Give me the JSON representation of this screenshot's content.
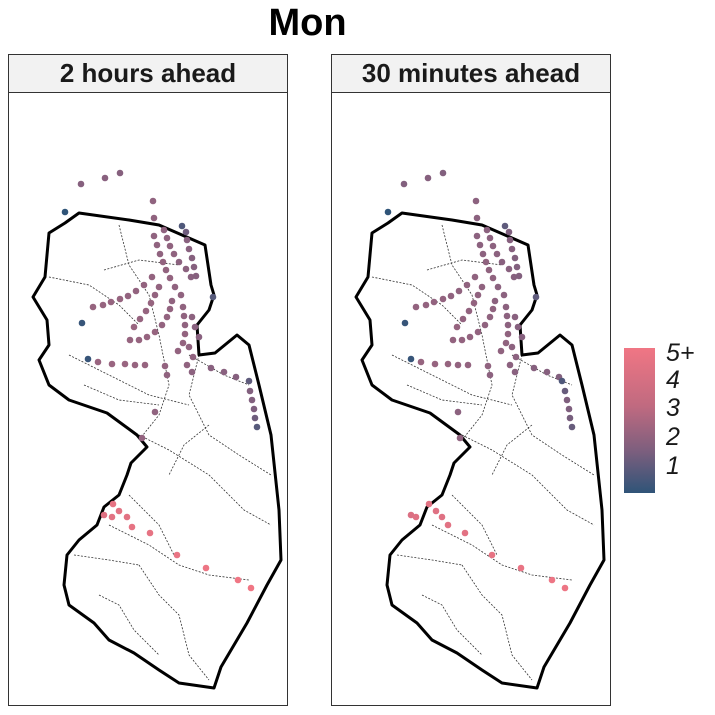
{
  "title": "Mon",
  "panels": [
    {
      "label": "2 hours ahead"
    },
    {
      "label": "30 minutes ahead"
    }
  ],
  "legend": {
    "labels": [
      "5+",
      "4",
      "3",
      "2",
      "1"
    ],
    "colors": {
      "high": "#f07684",
      "mid": "#8d6280",
      "low": "#2f5478"
    }
  },
  "chart_data": {
    "type": "scatter",
    "value_scale": {
      "min": 1,
      "max": 5,
      "top_label": "5+"
    },
    "series": [
      {
        "panel": "2 hours ahead",
        "points": [
          {
            "x": 72,
            "y": 129,
            "value": 2.2
          },
          {
            "x": 96,
            "y": 123,
            "value": 2.3
          },
          {
            "x": 111,
            "y": 118,
            "value": 2.2
          },
          {
            "x": 56,
            "y": 157,
            "value": 1.0
          },
          {
            "x": 144,
            "y": 146,
            "value": 2.5
          },
          {
            "x": 145,
            "y": 163,
            "value": 2.5
          },
          {
            "x": 173,
            "y": 171,
            "value": 1.4
          },
          {
            "x": 177,
            "y": 177,
            "value": 1.8
          },
          {
            "x": 155,
            "y": 175,
            "value": 2.5
          },
          {
            "x": 158,
            "y": 183,
            "value": 2.5
          },
          {
            "x": 161,
            "y": 191,
            "value": 2.5
          },
          {
            "x": 165,
            "y": 199,
            "value": 2.5
          },
          {
            "x": 170,
            "y": 207,
            "value": 2.4
          },
          {
            "x": 177,
            "y": 214,
            "value": 2.4
          },
          {
            "x": 182,
            "y": 222,
            "value": 2.3
          },
          {
            "x": 178,
            "y": 185,
            "value": 2.3
          },
          {
            "x": 180,
            "y": 194,
            "value": 2.3
          },
          {
            "x": 183,
            "y": 203,
            "value": 2.2
          },
          {
            "x": 185,
            "y": 212,
            "value": 2.2
          },
          {
            "x": 187,
            "y": 221,
            "value": 2.2
          },
          {
            "x": 145,
            "y": 181,
            "value": 2.5
          },
          {
            "x": 148,
            "y": 190,
            "value": 2.5
          },
          {
            "x": 151,
            "y": 199,
            "value": 2.5
          },
          {
            "x": 154,
            "y": 207,
            "value": 2.6
          },
          {
            "x": 157,
            "y": 215,
            "value": 2.6
          },
          {
            "x": 161,
            "y": 223,
            "value": 2.6
          },
          {
            "x": 166,
            "y": 232,
            "value": 2.5
          },
          {
            "x": 172,
            "y": 240,
            "value": 2.5
          },
          {
            "x": 204,
            "y": 242,
            "value": 1.5
          },
          {
            "x": 143,
            "y": 222,
            "value": 2.6
          },
          {
            "x": 135,
            "y": 230,
            "value": 2.6
          },
          {
            "x": 127,
            "y": 236,
            "value": 2.6
          },
          {
            "x": 119,
            "y": 241,
            "value": 2.6
          },
          {
            "x": 111,
            "y": 244,
            "value": 2.7
          },
          {
            "x": 102,
            "y": 247,
            "value": 2.7
          },
          {
            "x": 94,
            "y": 250,
            "value": 2.7
          },
          {
            "x": 84,
            "y": 252,
            "value": 2.7
          },
          {
            "x": 150,
            "y": 232,
            "value": 2.6
          },
          {
            "x": 146,
            "y": 240,
            "value": 2.6
          },
          {
            "x": 142,
            "y": 248,
            "value": 2.7
          },
          {
            "x": 137,
            "y": 256,
            "value": 2.7
          },
          {
            "x": 131,
            "y": 264,
            "value": 2.7
          },
          {
            "x": 125,
            "y": 272,
            "value": 2.8
          },
          {
            "x": 163,
            "y": 246,
            "value": 2.5
          },
          {
            "x": 161,
            "y": 254,
            "value": 2.6
          },
          {
            "x": 158,
            "y": 262,
            "value": 2.6
          },
          {
            "x": 153,
            "y": 270,
            "value": 2.6
          },
          {
            "x": 146,
            "y": 277,
            "value": 2.7
          },
          {
            "x": 138,
            "y": 282,
            "value": 2.7
          },
          {
            "x": 130,
            "y": 285,
            "value": 2.7
          },
          {
            "x": 121,
            "y": 285,
            "value": 2.7
          },
          {
            "x": 174,
            "y": 252,
            "value": 2.5
          },
          {
            "x": 175,
            "y": 261,
            "value": 2.5
          },
          {
            "x": 176,
            "y": 270,
            "value": 2.5
          },
          {
            "x": 176,
            "y": 279,
            "value": 2.6
          },
          {
            "x": 174,
            "y": 288,
            "value": 2.6
          },
          {
            "x": 169,
            "y": 296,
            "value": 2.6
          },
          {
            "x": 183,
            "y": 262,
            "value": 2.4
          },
          {
            "x": 186,
            "y": 272,
            "value": 2.3
          },
          {
            "x": 190,
            "y": 282,
            "value": 2.3
          },
          {
            "x": 180,
            "y": 292,
            "value": 2.5
          },
          {
            "x": 184,
            "y": 302,
            "value": 2.5
          },
          {
            "x": 73,
            "y": 268,
            "value": 1.1
          },
          {
            "x": 79,
            "y": 304,
            "value": 1.1
          },
          {
            "x": 89,
            "y": 307,
            "value": 2.8
          },
          {
            "x": 103,
            "y": 309,
            "value": 2.8
          },
          {
            "x": 116,
            "y": 309,
            "value": 2.8
          },
          {
            "x": 126,
            "y": 310,
            "value": 2.7
          },
          {
            "x": 136,
            "y": 310,
            "value": 2.7
          },
          {
            "x": 156,
            "y": 311,
            "value": 2.6
          },
          {
            "x": 158,
            "y": 320,
            "value": 2.5
          },
          {
            "x": 178,
            "y": 310,
            "value": 2.5
          },
          {
            "x": 183,
            "y": 317,
            "value": 2.4
          },
          {
            "x": 202,
            "y": 313,
            "value": 2.3
          },
          {
            "x": 215,
            "y": 317,
            "value": 2.3
          },
          {
            "x": 227,
            "y": 322,
            "value": 2.2
          },
          {
            "x": 240,
            "y": 326,
            "value": 1.6
          },
          {
            "x": 241,
            "y": 336,
            "value": 2.1
          },
          {
            "x": 243,
            "y": 345,
            "value": 2.1
          },
          {
            "x": 245,
            "y": 354,
            "value": 2.0
          },
          {
            "x": 246,
            "y": 363,
            "value": 1.8
          },
          {
            "x": 248,
            "y": 372,
            "value": 1.5
          },
          {
            "x": 146,
            "y": 357,
            "value": 2.5
          },
          {
            "x": 133,
            "y": 383,
            "value": 2.6
          },
          {
            "x": 104,
            "y": 449,
            "value": 4.7
          },
          {
            "x": 110,
            "y": 456,
            "value": 4.6
          },
          {
            "x": 95,
            "y": 460,
            "value": 4.5
          },
          {
            "x": 103,
            "y": 462,
            "value": 4.6
          },
          {
            "x": 118,
            "y": 462,
            "value": 4.6
          },
          {
            "x": 123,
            "y": 472,
            "value": 4.7
          },
          {
            "x": 141,
            "y": 478,
            "value": 4.7
          },
          {
            "x": 168,
            "y": 500,
            "value": 4.8
          },
          {
            "x": 197,
            "y": 513,
            "value": 4.9
          },
          {
            "x": 229,
            "y": 525,
            "value": 5.0
          },
          {
            "x": 242,
            "y": 533,
            "value": 5.0
          }
        ]
      },
      {
        "panel": "30 minutes ahead",
        "points": [
          {
            "x": 72,
            "y": 129,
            "value": 2.1
          },
          {
            "x": 96,
            "y": 123,
            "value": 2.2
          },
          {
            "x": 111,
            "y": 118,
            "value": 2.1
          },
          {
            "x": 56,
            "y": 157,
            "value": 1.0
          },
          {
            "x": 144,
            "y": 146,
            "value": 2.4
          },
          {
            "x": 145,
            "y": 163,
            "value": 2.4
          },
          {
            "x": 173,
            "y": 171,
            "value": 1.6
          },
          {
            "x": 177,
            "y": 177,
            "value": 2.0
          },
          {
            "x": 155,
            "y": 175,
            "value": 2.4
          },
          {
            "x": 158,
            "y": 183,
            "value": 2.4
          },
          {
            "x": 161,
            "y": 191,
            "value": 2.4
          },
          {
            "x": 165,
            "y": 199,
            "value": 2.4
          },
          {
            "x": 170,
            "y": 207,
            "value": 2.3
          },
          {
            "x": 177,
            "y": 214,
            "value": 2.3
          },
          {
            "x": 182,
            "y": 222,
            "value": 2.2
          },
          {
            "x": 178,
            "y": 185,
            "value": 2.2
          },
          {
            "x": 180,
            "y": 194,
            "value": 2.2
          },
          {
            "x": 183,
            "y": 203,
            "value": 2.1
          },
          {
            "x": 185,
            "y": 212,
            "value": 2.1
          },
          {
            "x": 187,
            "y": 221,
            "value": 2.1
          },
          {
            "x": 145,
            "y": 181,
            "value": 2.4
          },
          {
            "x": 148,
            "y": 190,
            "value": 2.4
          },
          {
            "x": 151,
            "y": 199,
            "value": 2.4
          },
          {
            "x": 154,
            "y": 207,
            "value": 2.5
          },
          {
            "x": 157,
            "y": 215,
            "value": 2.5
          },
          {
            "x": 161,
            "y": 223,
            "value": 2.5
          },
          {
            "x": 166,
            "y": 232,
            "value": 2.4
          },
          {
            "x": 172,
            "y": 240,
            "value": 2.4
          },
          {
            "x": 204,
            "y": 242,
            "value": 1.6
          },
          {
            "x": 143,
            "y": 222,
            "value": 2.5
          },
          {
            "x": 135,
            "y": 230,
            "value": 2.5
          },
          {
            "x": 127,
            "y": 236,
            "value": 2.5
          },
          {
            "x": 119,
            "y": 241,
            "value": 2.5
          },
          {
            "x": 111,
            "y": 244,
            "value": 2.6
          },
          {
            "x": 102,
            "y": 247,
            "value": 2.6
          },
          {
            "x": 94,
            "y": 250,
            "value": 2.6
          },
          {
            "x": 84,
            "y": 252,
            "value": 2.6
          },
          {
            "x": 150,
            "y": 232,
            "value": 2.5
          },
          {
            "x": 146,
            "y": 240,
            "value": 2.5
          },
          {
            "x": 142,
            "y": 248,
            "value": 2.6
          },
          {
            "x": 137,
            "y": 256,
            "value": 2.6
          },
          {
            "x": 131,
            "y": 264,
            "value": 2.6
          },
          {
            "x": 125,
            "y": 272,
            "value": 2.7
          },
          {
            "x": 163,
            "y": 246,
            "value": 2.4
          },
          {
            "x": 161,
            "y": 254,
            "value": 2.5
          },
          {
            "x": 158,
            "y": 262,
            "value": 2.5
          },
          {
            "x": 153,
            "y": 270,
            "value": 2.5
          },
          {
            "x": 146,
            "y": 277,
            "value": 2.6
          },
          {
            "x": 138,
            "y": 282,
            "value": 2.6
          },
          {
            "x": 130,
            "y": 285,
            "value": 2.6
          },
          {
            "x": 121,
            "y": 285,
            "value": 2.6
          },
          {
            "x": 174,
            "y": 252,
            "value": 2.4
          },
          {
            "x": 175,
            "y": 261,
            "value": 2.4
          },
          {
            "x": 176,
            "y": 270,
            "value": 2.4
          },
          {
            "x": 176,
            "y": 279,
            "value": 2.5
          },
          {
            "x": 174,
            "y": 288,
            "value": 2.5
          },
          {
            "x": 169,
            "y": 296,
            "value": 2.5
          },
          {
            "x": 183,
            "y": 262,
            "value": 2.3
          },
          {
            "x": 186,
            "y": 272,
            "value": 2.2
          },
          {
            "x": 190,
            "y": 282,
            "value": 2.2
          },
          {
            "x": 180,
            "y": 292,
            "value": 2.4
          },
          {
            "x": 184,
            "y": 302,
            "value": 2.4
          },
          {
            "x": 73,
            "y": 268,
            "value": 1.1
          },
          {
            "x": 79,
            "y": 304,
            "value": 1.1
          },
          {
            "x": 89,
            "y": 307,
            "value": 2.7
          },
          {
            "x": 103,
            "y": 309,
            "value": 2.7
          },
          {
            "x": 116,
            "y": 309,
            "value": 2.7
          },
          {
            "x": 126,
            "y": 310,
            "value": 2.6
          },
          {
            "x": 136,
            "y": 310,
            "value": 2.6
          },
          {
            "x": 156,
            "y": 311,
            "value": 2.5
          },
          {
            "x": 158,
            "y": 320,
            "value": 2.4
          },
          {
            "x": 178,
            "y": 310,
            "value": 2.4
          },
          {
            "x": 183,
            "y": 317,
            "value": 2.3
          },
          {
            "x": 202,
            "y": 313,
            "value": 2.2
          },
          {
            "x": 215,
            "y": 317,
            "value": 2.2
          },
          {
            "x": 227,
            "y": 322,
            "value": 2.1
          },
          {
            "x": 230,
            "y": 326,
            "value": 1.4
          },
          {
            "x": 233,
            "y": 336,
            "value": 1.7
          },
          {
            "x": 235,
            "y": 345,
            "value": 2.0
          },
          {
            "x": 237,
            "y": 354,
            "value": 2.0
          },
          {
            "x": 238,
            "y": 363,
            "value": 1.9
          },
          {
            "x": 240,
            "y": 372,
            "value": 1.7
          },
          {
            "x": 126,
            "y": 357,
            "value": 2.4
          },
          {
            "x": 128,
            "y": 383,
            "value": 2.5
          },
          {
            "x": 97,
            "y": 449,
            "value": 4.6
          },
          {
            "x": 104,
            "y": 456,
            "value": 4.5
          },
          {
            "x": 79,
            "y": 460,
            "value": 4.4
          },
          {
            "x": 84,
            "y": 462,
            "value": 4.5
          },
          {
            "x": 110,
            "y": 462,
            "value": 4.5
          },
          {
            "x": 116,
            "y": 470,
            "value": 4.6
          },
          {
            "x": 133,
            "y": 478,
            "value": 4.6
          },
          {
            "x": 160,
            "y": 500,
            "value": 4.7
          },
          {
            "x": 189,
            "y": 513,
            "value": 4.8
          },
          {
            "x": 220,
            "y": 525,
            "value": 4.9
          },
          {
            "x": 233,
            "y": 533,
            "value": 4.9
          }
        ]
      }
    ]
  }
}
